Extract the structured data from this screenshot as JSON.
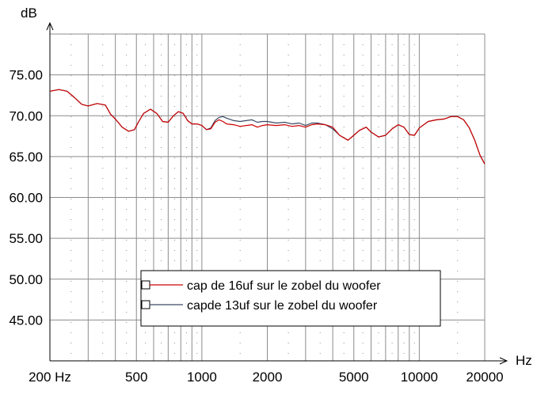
{
  "chart_data": {
    "type": "line",
    "ylabel": "dB",
    "xlabel": "Hz",
    "xscale": "log",
    "xlim": [
      200,
      20000
    ],
    "ylim": [
      40,
      80
    ],
    "grid": true,
    "legend_position": "bottom-center",
    "x_ticks": [
      {
        "value": 200,
        "label": "200 Hz"
      },
      {
        "value": 500,
        "label": "500"
      },
      {
        "value": 1000,
        "label": "1000"
      },
      {
        "value": 2000,
        "label": "2000"
      },
      {
        "value": 5000,
        "label": "5000"
      },
      {
        "value": 10000,
        "label": "10000"
      },
      {
        "value": 20000,
        "label": "20000"
      }
    ],
    "y_ticks": [
      {
        "value": 75,
        "label": "75.00"
      },
      {
        "value": 70,
        "label": "70.00"
      },
      {
        "value": 65,
        "label": "65.00"
      },
      {
        "value": 60,
        "label": "60.00"
      },
      {
        "value": 55,
        "label": "55.00"
      },
      {
        "value": 50,
        "label": "50.00"
      },
      {
        "value": 45,
        "label": "45.00"
      }
    ],
    "series": [
      {
        "name": "cap de 16uf sur le zobel du woofer",
        "color": "#cc0000",
        "x": [
          200,
          220,
          240,
          260,
          280,
          300,
          330,
          360,
          380,
          400,
          430,
          460,
          490,
          510,
          540,
          580,
          620,
          660,
          700,
          740,
          780,
          820,
          860,
          900,
          950,
          1000,
          1050,
          1100,
          1150,
          1200,
          1250,
          1300,
          1400,
          1500,
          1600,
          1700,
          1800,
          1900,
          2000,
          2200,
          2400,
          2600,
          2800,
          3000,
          3200,
          3400,
          3700,
          4000,
          4300,
          4700,
          5000,
          5300,
          5700,
          6000,
          6500,
          7000,
          7500,
          8000,
          8500,
          9000,
          9500,
          10000,
          11000,
          12000,
          13000,
          14000,
          15000,
          16000,
          17000,
          18000,
          19000,
          20000
        ],
        "y": [
          73.0,
          73.2,
          73.0,
          72.2,
          71.4,
          71.2,
          71.5,
          71.3,
          70.2,
          69.6,
          68.6,
          68.1,
          68.3,
          69.2,
          70.3,
          70.8,
          70.3,
          69.3,
          69.2,
          70.0,
          70.5,
          70.3,
          69.4,
          69.0,
          69.0,
          68.8,
          68.3,
          68.4,
          69.2,
          69.5,
          69.3,
          69.0,
          68.9,
          68.7,
          68.8,
          68.9,
          68.6,
          68.8,
          68.9,
          68.8,
          68.9,
          68.7,
          68.8,
          68.6,
          68.9,
          69.0,
          68.9,
          68.6,
          67.6,
          67.0,
          67.6,
          68.2,
          68.6,
          68.0,
          67.4,
          67.6,
          68.4,
          68.9,
          68.6,
          67.7,
          67.6,
          68.5,
          69.3,
          69.5,
          69.6,
          69.9,
          69.9,
          69.5,
          68.5,
          67.0,
          65.2,
          64.1
        ]
      },
      {
        "name": "capde  13uf sur le zobel du woofer",
        "color": "#3b4a63",
        "x": [
          200,
          220,
          240,
          260,
          280,
          300,
          330,
          360,
          380,
          400,
          430,
          460,
          490,
          510,
          540,
          580,
          620,
          660,
          700,
          740,
          780,
          820,
          860,
          900,
          950,
          1000,
          1050,
          1100,
          1150,
          1200,
          1250,
          1300,
          1400,
          1500,
          1600,
          1700,
          1800,
          1900,
          2000,
          2200,
          2400,
          2600,
          2800,
          3000,
          3200,
          3400,
          3700,
          4000,
          4300,
          4700,
          5000,
          5300,
          5700,
          6000,
          6500,
          7000,
          7500,
          8000,
          8500,
          9000,
          9500,
          10000,
          11000,
          12000,
          13000,
          14000,
          15000,
          16000,
          17000,
          18000,
          19000,
          20000
        ],
        "y": [
          73.0,
          73.2,
          73.0,
          72.2,
          71.4,
          71.2,
          71.5,
          71.3,
          70.2,
          69.6,
          68.6,
          68.1,
          68.3,
          69.2,
          70.3,
          70.8,
          70.3,
          69.3,
          69.2,
          70.0,
          70.5,
          70.3,
          69.4,
          69.0,
          69.0,
          68.8,
          68.3,
          68.5,
          69.4,
          69.8,
          69.9,
          69.7,
          69.4,
          69.3,
          69.4,
          69.5,
          69.2,
          69.3,
          69.3,
          69.1,
          69.2,
          69.0,
          69.1,
          68.8,
          69.1,
          69.1,
          68.9,
          68.4,
          67.6,
          67.0,
          67.6,
          68.2,
          68.6,
          68.0,
          67.4,
          67.6,
          68.4,
          68.9,
          68.6,
          67.7,
          67.6,
          68.5,
          69.3,
          69.5,
          69.6,
          69.9,
          69.9,
          69.5,
          68.5,
          67.0,
          65.2,
          64.1
        ]
      }
    ]
  }
}
